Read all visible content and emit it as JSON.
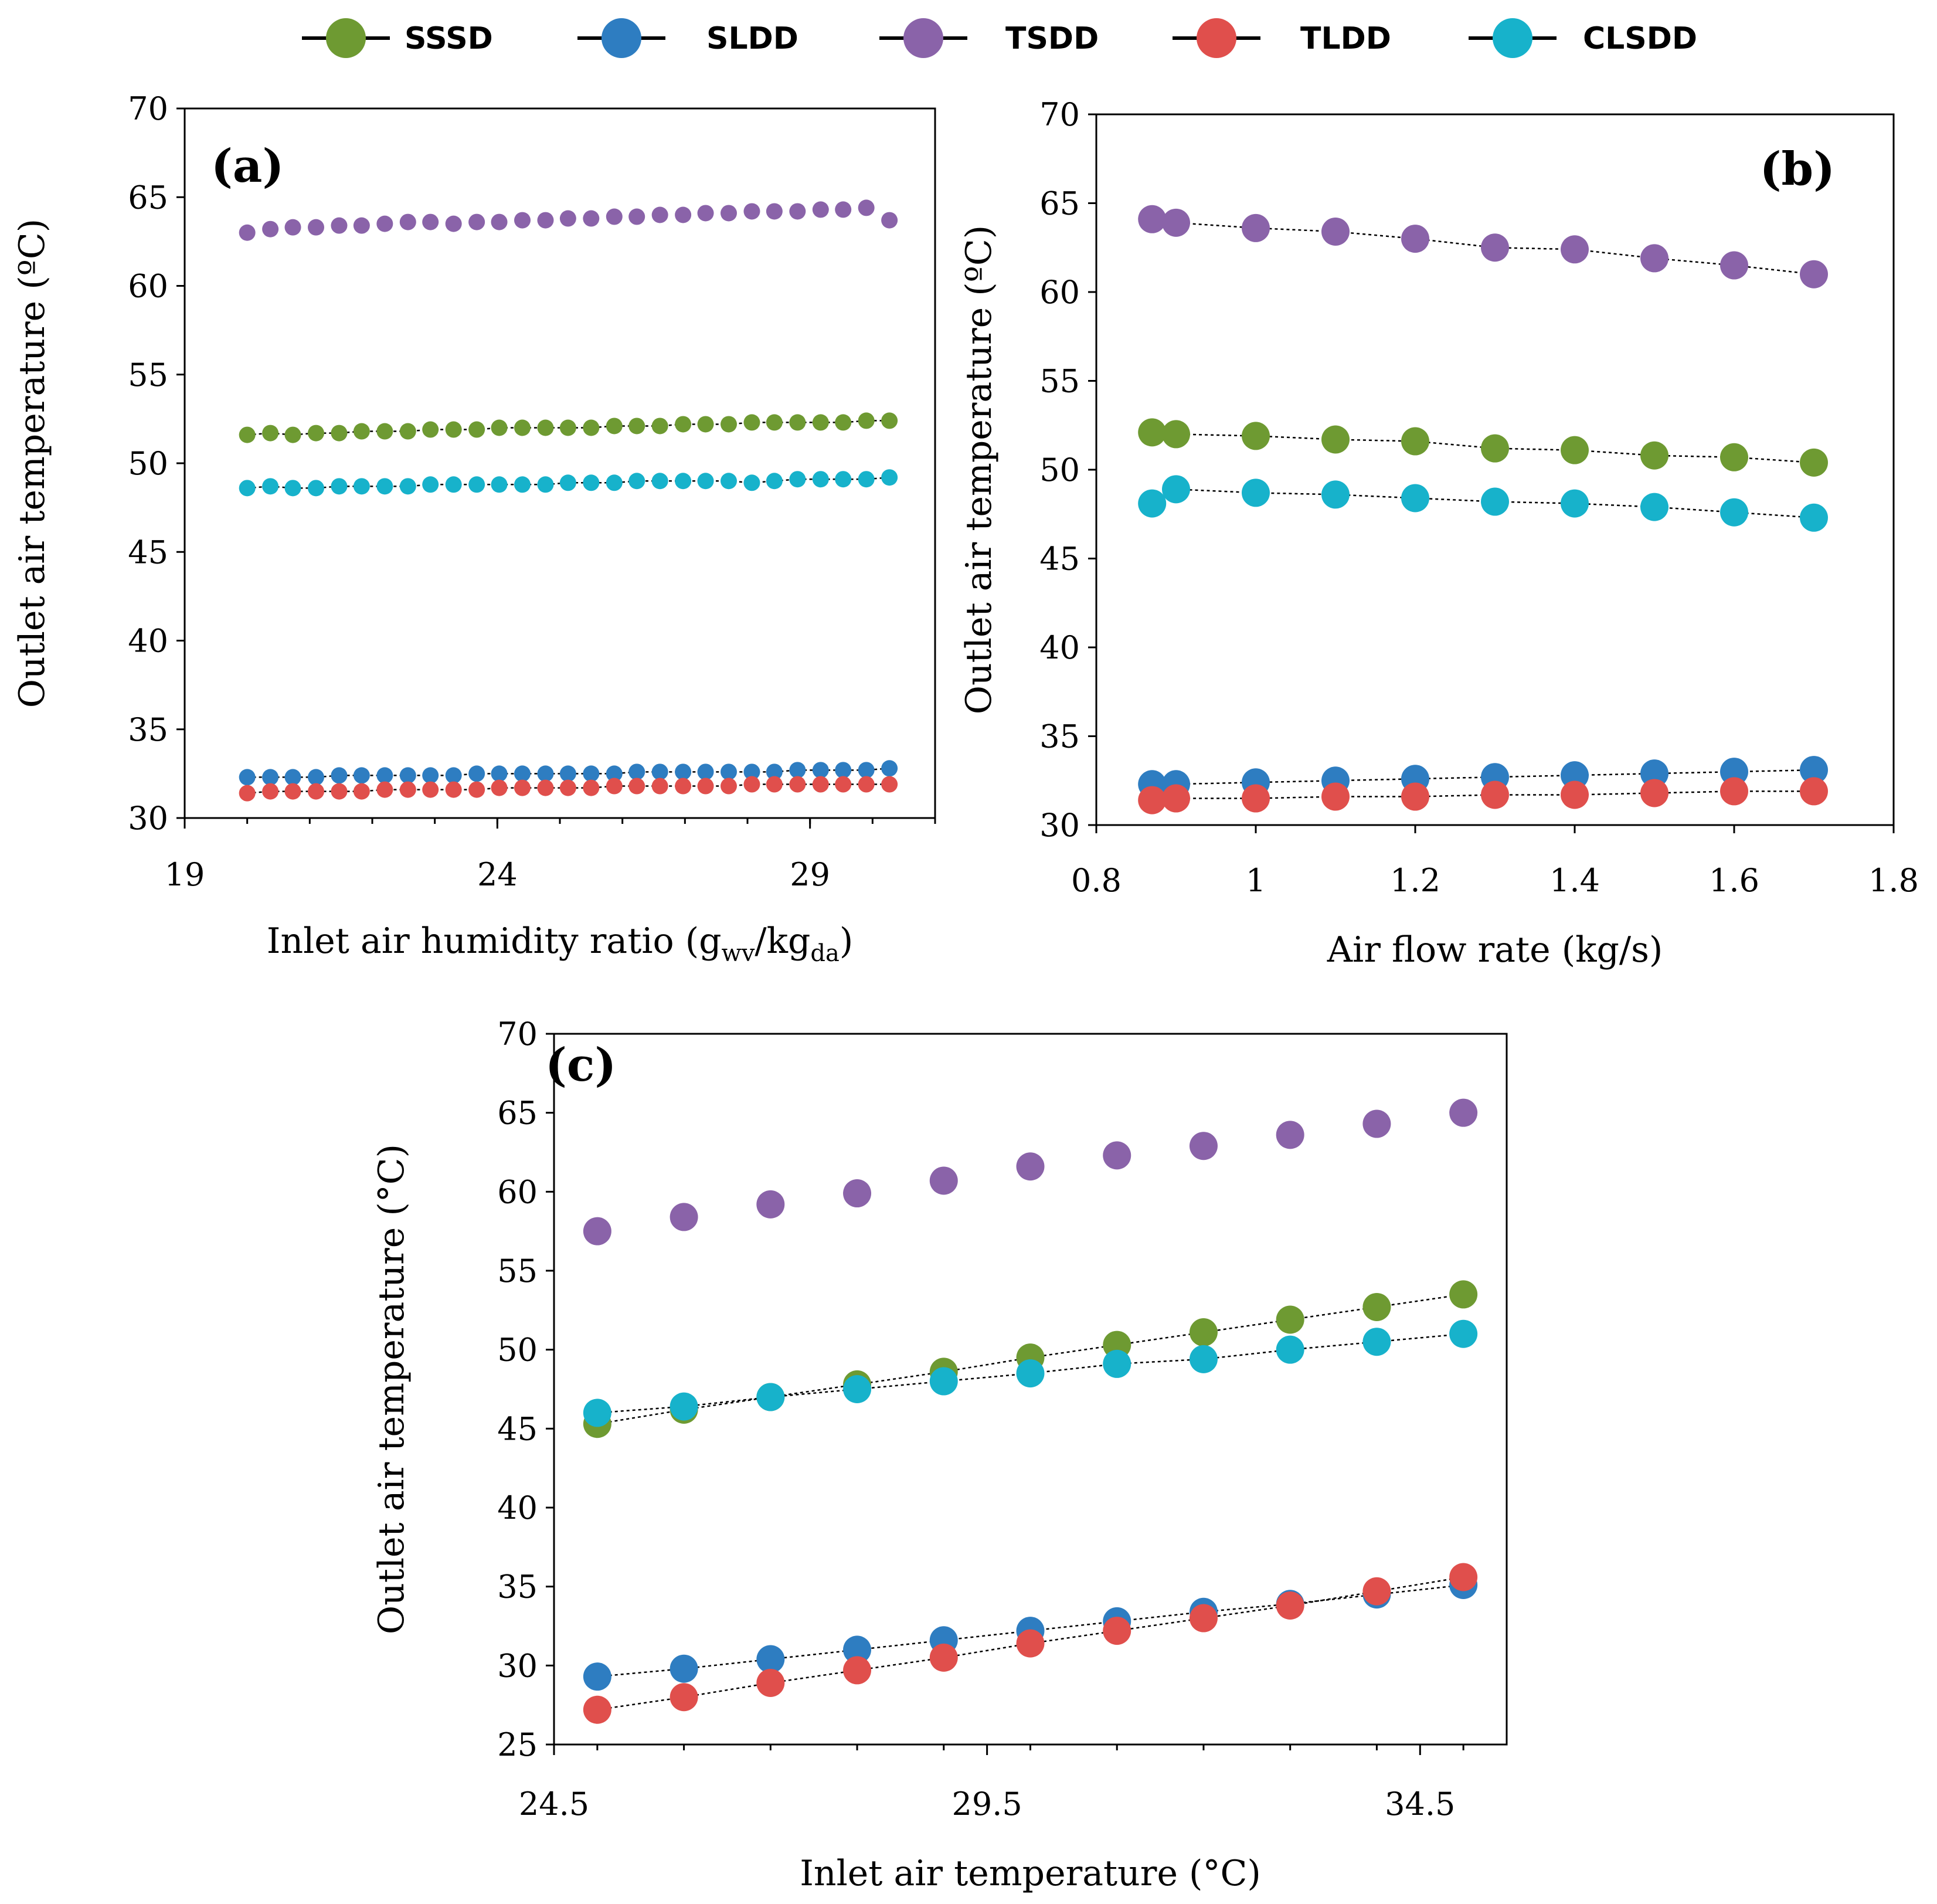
{
  "legend": [
    {
      "key": "SSSD",
      "label": "SSSD",
      "color": "#6e9a32"
    },
    {
      "key": "SLDD",
      "label": "SLDD",
      "color": "#2e7dc1"
    },
    {
      "key": "TSDD",
      "label": "TSDD",
      "color": "#8a63a9"
    },
    {
      "key": "TLDD",
      "label": "TLDD",
      "color": "#e04f4c"
    },
    {
      "key": "CLSDD",
      "label": "CLSDD",
      "color": "#17b2cb"
    }
  ],
  "chart_data": [
    {
      "id": "a",
      "type": "scatter",
      "panel_label": "(a)",
      "xlabel_main": "Inlet air humidity ratio (g",
      "xlabel_sub1": "wv",
      "xlabel_mid": "/kg",
      "xlabel_sub2": "da",
      "xlabel_end": ")",
      "ylabel": "Outlet air temperature (ºC)",
      "xlim": [
        19,
        31
      ],
      "ylim": [
        30,
        70
      ],
      "xticks": [
        "19",
        "24",
        "29"
      ],
      "yticks": [
        "30",
        "35",
        "40",
        "45",
        "50",
        "55",
        "60",
        "65",
        "70"
      ],
      "x": [
        20,
        20.37,
        20.73,
        21.1,
        21.47,
        21.83,
        22.2,
        22.57,
        22.93,
        23.3,
        23.67,
        24.03,
        24.4,
        24.77,
        25.13,
        25.5,
        25.87,
        26.23,
        26.6,
        26.97,
        27.33,
        27.7,
        28.07,
        28.43,
        28.8,
        29.17,
        29.53,
        29.9,
        30.27
      ],
      "series": [
        {
          "key": "TSDD",
          "trend": false,
          "values": [
            63.0,
            63.2,
            63.3,
            63.3,
            63.4,
            63.4,
            63.5,
            63.6,
            63.6,
            63.5,
            63.6,
            63.6,
            63.7,
            63.7,
            63.8,
            63.8,
            63.9,
            63.9,
            64.0,
            64.0,
            64.1,
            64.1,
            64.2,
            64.2,
            64.2,
            64.3,
            64.3,
            64.4,
            63.7
          ]
        },
        {
          "key": "SSSD",
          "trend": true,
          "values": [
            51.6,
            51.7,
            51.6,
            51.7,
            51.7,
            51.8,
            51.8,
            51.8,
            51.9,
            51.9,
            51.9,
            52.0,
            52.0,
            52.0,
            52.0,
            52.0,
            52.1,
            52.1,
            52.1,
            52.2,
            52.2,
            52.2,
            52.3,
            52.3,
            52.3,
            52.3,
            52.3,
            52.4,
            52.4
          ]
        },
        {
          "key": "CLSDD",
          "trend": true,
          "values": [
            48.6,
            48.7,
            48.6,
            48.6,
            48.7,
            48.7,
            48.7,
            48.7,
            48.8,
            48.8,
            48.8,
            48.8,
            48.8,
            48.8,
            48.9,
            48.9,
            48.9,
            49.0,
            49.0,
            49.0,
            49.0,
            49.0,
            48.9,
            49.0,
            49.1,
            49.1,
            49.1,
            49.1,
            49.2
          ]
        },
        {
          "key": "SLDD",
          "trend": true,
          "values": [
            32.3,
            32.3,
            32.3,
            32.3,
            32.4,
            32.4,
            32.4,
            32.4,
            32.4,
            32.4,
            32.5,
            32.5,
            32.5,
            32.5,
            32.5,
            32.5,
            32.5,
            32.6,
            32.6,
            32.6,
            32.6,
            32.6,
            32.6,
            32.6,
            32.7,
            32.7,
            32.7,
            32.7,
            32.8
          ]
        },
        {
          "key": "TLDD",
          "trend": true,
          "values": [
            31.4,
            31.5,
            31.5,
            31.5,
            31.5,
            31.5,
            31.6,
            31.6,
            31.6,
            31.6,
            31.6,
            31.7,
            31.7,
            31.7,
            31.7,
            31.7,
            31.8,
            31.8,
            31.8,
            31.8,
            31.8,
            31.8,
            31.9,
            31.9,
            31.9,
            31.9,
            31.9,
            31.9,
            31.9
          ]
        }
      ]
    },
    {
      "id": "b",
      "type": "scatter",
      "panel_label": "(b)",
      "xlabel": "Air flow rate (kg/s)",
      "ylabel": "Outlet air temperature (ºC)",
      "xlim": [
        0.8,
        1.8
      ],
      "ylim": [
        30,
        70
      ],
      "xticks": [
        "0.8",
        "1",
        "1.2",
        "1.4",
        "1.6",
        "1.8"
      ],
      "yticks": [
        "30",
        "35",
        "40",
        "45",
        "50",
        "55",
        "60",
        "65",
        "70"
      ],
      "x": [
        0.87,
        0.9,
        1.0,
        1.1,
        1.2,
        1.3,
        1.4,
        1.5,
        1.6,
        1.7
      ],
      "series": [
        {
          "key": "TSDD",
          "trend": true,
          "values": [
            64.1,
            63.9,
            63.6,
            63.4,
            63.0,
            62.5,
            62.4,
            61.9,
            61.5,
            61.0
          ]
        },
        {
          "key": "SSSD",
          "trend": true,
          "values": [
            52.1,
            52.0,
            51.9,
            51.7,
            51.6,
            51.2,
            51.1,
            50.8,
            50.7,
            50.4
          ]
        },
        {
          "key": "CLSDD",
          "trend": true,
          "values": [
            48.1,
            48.9,
            48.7,
            48.6,
            48.4,
            48.2,
            48.1,
            47.9,
            47.6,
            47.3
          ]
        },
        {
          "key": "SLDD",
          "trend": true,
          "values": [
            32.3,
            32.3,
            32.4,
            32.5,
            32.6,
            32.7,
            32.8,
            32.9,
            33.0,
            33.1
          ]
        },
        {
          "key": "TLDD",
          "trend": true,
          "values": [
            31.4,
            31.5,
            31.5,
            31.6,
            31.6,
            31.7,
            31.7,
            31.8,
            31.9,
            31.9
          ]
        }
      ]
    },
    {
      "id": "c",
      "type": "scatter",
      "panel_label": "(c)",
      "xlabel": "Inlet air temperature (°C)",
      "ylabel": "Outlet air temperature (°C)",
      "xlim": [
        24.5,
        35.5
      ],
      "ylim": [
        25,
        70
      ],
      "xticks": [
        "24.5",
        "29.5",
        "34.5"
      ],
      "yticks": [
        "25",
        "30",
        "35",
        "40",
        "45",
        "50",
        "55",
        "60",
        "65",
        "70"
      ],
      "x": [
        25,
        26,
        27,
        28,
        29,
        30,
        31,
        32,
        33,
        34,
        35
      ],
      "series": [
        {
          "key": "TSDD",
          "trend": false,
          "values": [
            57.5,
            58.4,
            59.2,
            59.9,
            60.7,
            61.6,
            62.3,
            62.9,
            63.6,
            64.3,
            65.0
          ]
        },
        {
          "key": "SSSD",
          "trend": true,
          "values": [
            45.3,
            46.2,
            47.0,
            47.8,
            48.6,
            49.5,
            50.3,
            51.1,
            51.9,
            52.7,
            53.5
          ]
        },
        {
          "key": "CLSDD",
          "trend": true,
          "values": [
            46.0,
            46.4,
            47.0,
            47.5,
            48.0,
            48.5,
            49.1,
            49.4,
            50.0,
            50.5,
            51.0
          ]
        },
        {
          "key": "SLDD",
          "trend": true,
          "values": [
            29.3,
            29.8,
            30.4,
            31.0,
            31.6,
            32.2,
            32.8,
            33.4,
            33.9,
            34.5,
            35.1
          ]
        },
        {
          "key": "TLDD",
          "trend": true,
          "values": [
            27.2,
            28.0,
            28.9,
            29.7,
            30.5,
            31.4,
            32.2,
            33.0,
            33.8,
            34.7,
            35.6
          ]
        }
      ]
    }
  ]
}
